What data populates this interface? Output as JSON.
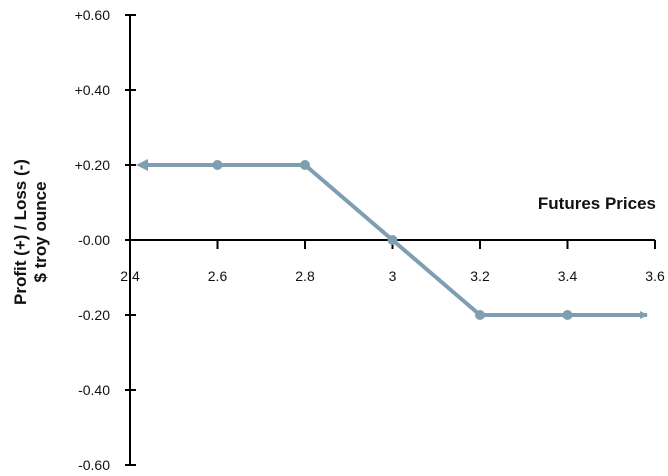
{
  "chart_data": {
    "type": "line",
    "title": "",
    "xlabel": "Futures Prices",
    "ylabel_lines": [
      "Profit (+) / Loss (-)",
      "$ troy ounce"
    ],
    "xlim": [
      2.4,
      3.6
    ],
    "ylim": [
      -0.6,
      0.6
    ],
    "x_ticks": [
      2.4,
      2.6,
      2.8,
      3.0,
      3.2,
      3.4,
      3.6
    ],
    "x_tick_labels": [
      "2.4",
      "2.6",
      "2.8",
      "3",
      "3.2",
      "3.4",
      "3.6"
    ],
    "y_ticks": [
      0.6,
      0.4,
      0.2,
      0.0,
      -0.2,
      -0.4,
      -0.6
    ],
    "y_tick_labels": [
      "+0.60",
      "+0.40",
      "+0.20",
      "-0.00",
      "-0.20",
      "-0.40",
      "-0.60"
    ],
    "series": [
      {
        "x": [
          2.4,
          2.6,
          2.8,
          3.0,
          3.2,
          3.4,
          3.6
        ],
        "y": [
          0.2,
          0.2,
          0.2,
          0.0,
          -0.2,
          -0.2,
          -0.2
        ],
        "markers_at": [
          2.6,
          2.8,
          3.0,
          3.2,
          3.4
        ],
        "arrow_ends": true,
        "color": "#7f9eb2"
      }
    ],
    "grid": false,
    "legend": "none",
    "axis_color": "#000000"
  }
}
